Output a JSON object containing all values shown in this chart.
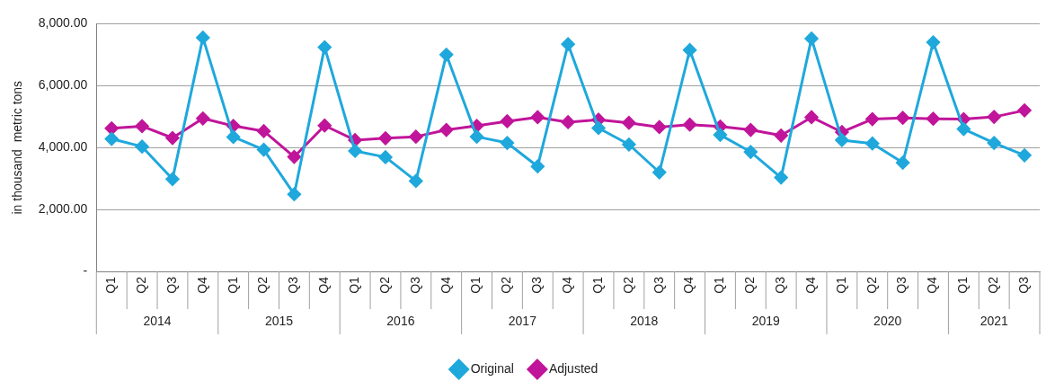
{
  "chart_data": {
    "type": "line",
    "ylabel": "in thousand  metric tons",
    "categories": [
      "Q1",
      "Q2",
      "Q3",
      "Q4",
      "Q1",
      "Q2",
      "Q3",
      "Q4",
      "Q1",
      "Q2",
      "Q3",
      "Q4",
      "Q1",
      "Q2",
      "Q3",
      "Q4",
      "Q1",
      "Q2",
      "Q3",
      "Q4",
      "Q1",
      "Q2",
      "Q3",
      "Q4",
      "Q1",
      "Q2",
      "Q3",
      "Q4",
      "Q1",
      "Q2",
      "Q3"
    ],
    "annotations": [
      "2014",
      "2015",
      "2016",
      "2017",
      "2018",
      "2019",
      "2020",
      "2021"
    ],
    "series": [
      {
        "name": "Original",
        "color": "#1fa8dc",
        "values": [
          4280,
          4030,
          2980,
          7550,
          4340,
          3930,
          2490,
          7240,
          3890,
          3690,
          2920,
          7000,
          4350,
          4150,
          3390,
          7340,
          4630,
          4100,
          3200,
          7150,
          4410,
          3860,
          3030,
          7520,
          4240,
          4130,
          3510,
          7400,
          4600,
          4150,
          3750
        ]
      },
      {
        "name": "Adjusted",
        "color": "#c0159a",
        "values": [
          4620,
          4690,
          4310,
          4940,
          4700,
          4530,
          3700,
          4710,
          4240,
          4300,
          4350,
          4570,
          4700,
          4850,
          4980,
          4820,
          4900,
          4800,
          4660,
          4740,
          4680,
          4570,
          4390,
          4980,
          4500,
          4920,
          4960,
          4930,
          4920,
          4990,
          5200
        ]
      }
    ],
    "ylim": [
      0,
      8000
    ],
    "yticks": [
      {
        "value": 0,
        "label": "-"
      },
      {
        "value": 2000,
        "label": "2,000.00"
      },
      {
        "value": 4000,
        "label": "4,000.00"
      },
      {
        "value": 6000,
        "label": "6,000.00"
      },
      {
        "value": 8000,
        "label": "8,000.00"
      }
    ],
    "grid": "y",
    "legend": "bottom",
    "marker": "diamond",
    "line_style": "solid"
  }
}
